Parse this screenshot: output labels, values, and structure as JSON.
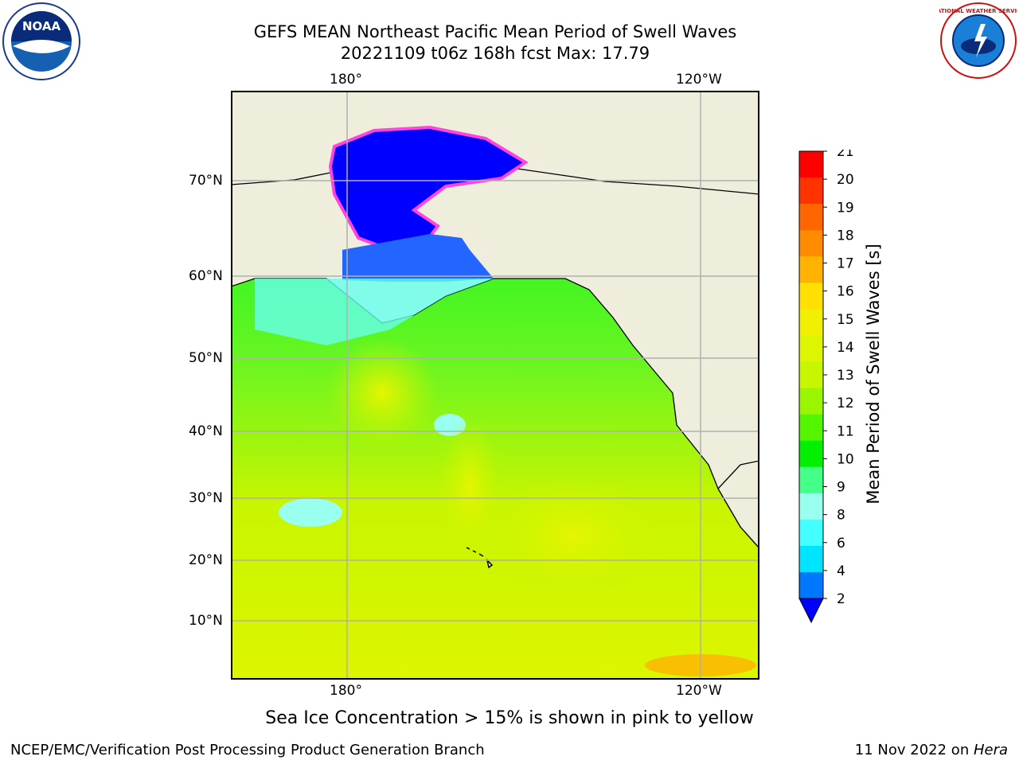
{
  "logos": {
    "noaa": {
      "label": "NOAA",
      "ring_text": "NATIONAL OCEANIC AND ATMOSPHERIC ADMINISTRATION · U.S. DEPARTMENT OF COMMERCE"
    },
    "nws": {
      "ring_text": "NATIONAL WEATHER SERVICE"
    }
  },
  "title": {
    "line1": "GEFS MEAN Northeast Pacific Mean Period of Swell Waves",
    "line2": "20221109 t06z 168h fcst   Max: 17.79"
  },
  "map": {
    "lon_labels_top": [
      "180°",
      "120°W"
    ],
    "lon_labels_bottom": [
      "180°",
      "120°W"
    ],
    "lat_labels": [
      "70°N",
      "60°N",
      "50°N",
      "40°N",
      "30°N",
      "20°N",
      "10°N"
    ],
    "colors": {
      "land": "#efeedc",
      "ice_blue": "#0000ff",
      "ice_pink": "#ff44dd",
      "grid": "#b0b0b0"
    }
  },
  "colorbar": {
    "label": "Mean Period of Swell Waves [s]",
    "ticks": [
      "21",
      "20",
      "19",
      "18",
      "17",
      "16",
      "15",
      "14",
      "13",
      "12",
      "11",
      "10",
      "9",
      "8",
      "6",
      "4",
      "2"
    ],
    "colors": [
      "#ff0000",
      "#ff3300",
      "#ff6600",
      "#ff8c00",
      "#ffb300",
      "#ffe000",
      "#f0f000",
      "#ddf500",
      "#c8f500",
      "#9cf500",
      "#55f500",
      "#00f000",
      "#44ff88",
      "#99ffee",
      "#44ffff",
      "#00e5ff",
      "#0077ff"
    ],
    "extend_color": "#0000ff"
  },
  "note": "Sea Ice Concentration > 15% is shown in pink to yellow",
  "footer": {
    "left": "NCEP/EMC/Verification Post Processing Product Generation Branch",
    "right_prefix": "11 Nov 2022 on ",
    "right_host": "Hera"
  }
}
